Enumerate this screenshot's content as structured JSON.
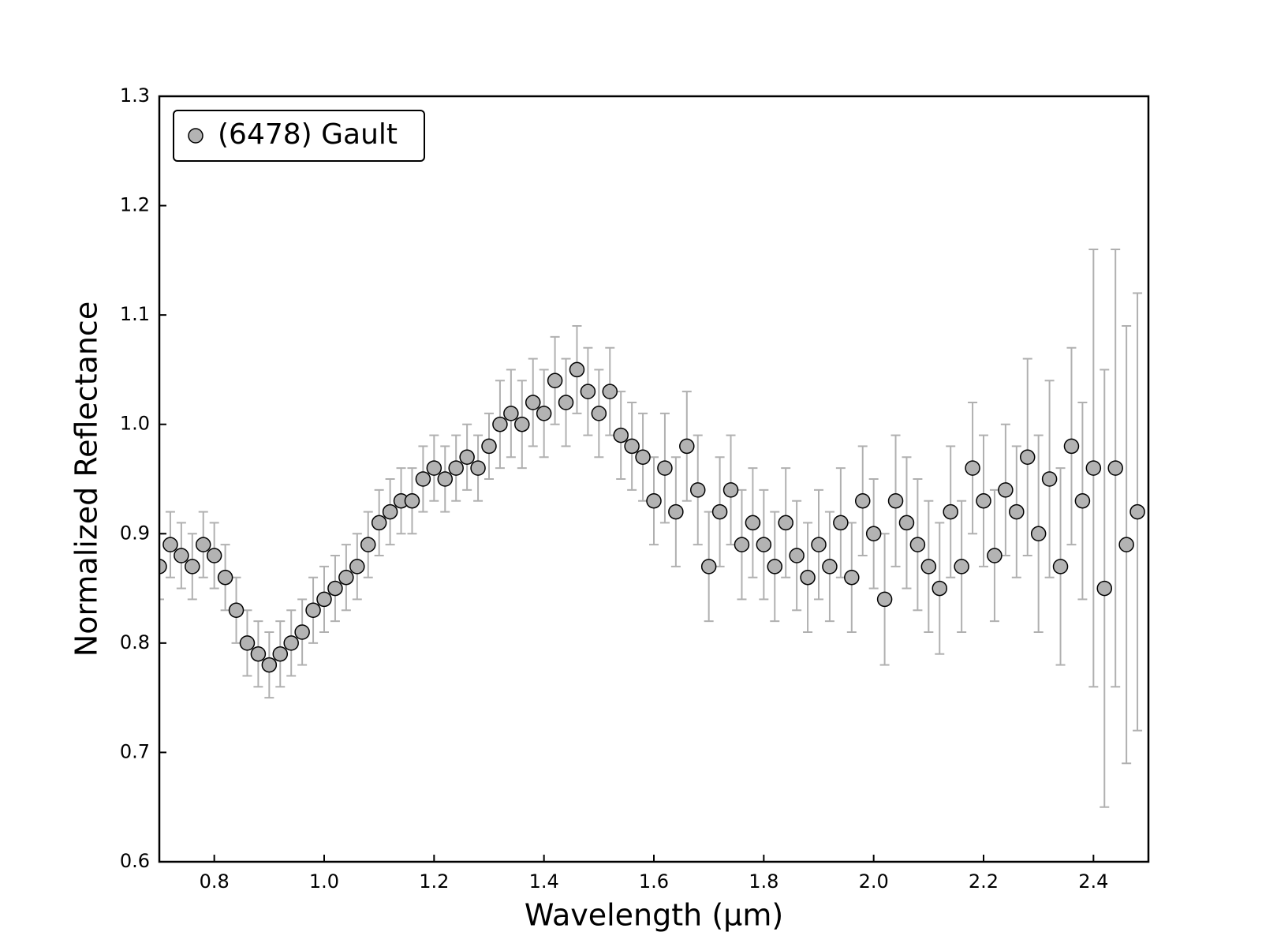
{
  "chart_data": {
    "type": "scatter",
    "xlabel": "Wavelength (μm)",
    "ylabel": "Normalized Reflectance",
    "xlim": [
      0.7,
      2.5
    ],
    "ylim": [
      0.6,
      1.3
    ],
    "xticks": [
      0.8,
      {
        "value": 1,
        "label": "1.0"
      },
      1.2,
      1.4,
      1.6,
      1.8,
      {
        "value": 2,
        "label": "2.0"
      },
      2.2,
      2.4
    ],
    "yticks": [
      0.6,
      0.7,
      0.8,
      0.9,
      {
        "value": 1,
        "label": "1.0"
      },
      1.1,
      1.2,
      1.3
    ],
    "legend": "upper left",
    "series": [
      {
        "name": "(6478) Gault",
        "color": "#b3b3b3",
        "edgecolor": "#000000",
        "ecolor": "#b0b0b0",
        "x": [
          0.7,
          0.72,
          0.74,
          0.76,
          0.78,
          0.8,
          0.82,
          0.84,
          0.86,
          0.88,
          0.9,
          0.92,
          0.94,
          0.96,
          0.98,
          1.0,
          1.02,
          1.04,
          1.06,
          1.08,
          1.1,
          1.12,
          1.14,
          1.16,
          1.18,
          1.2,
          1.22,
          1.24,
          1.26,
          1.28,
          1.3,
          1.32,
          1.34,
          1.36,
          1.38,
          1.4,
          1.42,
          1.44,
          1.46,
          1.48,
          1.5,
          1.52,
          1.54,
          1.56,
          1.58,
          1.6,
          1.62,
          1.64,
          1.66,
          1.68,
          1.7,
          1.72,
          1.74,
          1.76,
          1.78,
          1.8,
          1.82,
          1.84,
          1.86,
          1.88,
          1.9,
          1.92,
          1.94,
          1.96,
          1.98,
          2.0,
          2.02,
          2.04,
          2.06,
          2.08,
          2.1,
          2.12,
          2.14,
          2.16,
          2.18,
          2.2,
          2.22,
          2.24,
          2.26,
          2.28,
          2.3,
          2.32,
          2.34,
          2.36,
          2.38,
          2.4,
          2.42,
          2.44,
          2.46,
          2.48
        ],
        "values": [
          0.87,
          0.89,
          0.88,
          0.87,
          0.89,
          0.88,
          0.86,
          0.83,
          0.8,
          0.79,
          0.78,
          0.79,
          0.8,
          0.81,
          0.83,
          0.84,
          0.85,
          0.86,
          0.87,
          0.89,
          0.91,
          0.92,
          0.93,
          0.93,
          0.95,
          0.96,
          0.95,
          0.96,
          0.97,
          0.96,
          0.98,
          1.0,
          1.01,
          1.0,
          1.02,
          1.01,
          1.04,
          1.02,
          1.05,
          1.03,
          1.01,
          1.03,
          0.99,
          0.98,
          0.97,
          0.93,
          0.96,
          0.92,
          0.98,
          0.94,
          0.87,
          0.92,
          0.94,
          0.89,
          0.91,
          0.89,
          0.87,
          0.91,
          0.88,
          0.86,
          0.89,
          0.87,
          0.91,
          0.86,
          0.93,
          0.9,
          0.84,
          0.93,
          0.91,
          0.89,
          0.87,
          0.85,
          0.92,
          0.87,
          0.96,
          0.93,
          0.88,
          0.94,
          0.92,
          0.97,
          0.9,
          0.95,
          0.87,
          0.98,
          0.93,
          0.96,
          0.85,
          0.96,
          0.89,
          0.92
        ],
        "errors": [
          0.03,
          0.03,
          0.03,
          0.03,
          0.03,
          0.03,
          0.03,
          0.03,
          0.03,
          0.03,
          0.03,
          0.03,
          0.03,
          0.03,
          0.03,
          0.03,
          0.03,
          0.03,
          0.03,
          0.03,
          0.03,
          0.03,
          0.03,
          0.03,
          0.03,
          0.03,
          0.03,
          0.03,
          0.03,
          0.03,
          0.03,
          0.04,
          0.04,
          0.04,
          0.04,
          0.04,
          0.04,
          0.04,
          0.04,
          0.04,
          0.04,
          0.04,
          0.04,
          0.04,
          0.04,
          0.04,
          0.05,
          0.05,
          0.05,
          0.05,
          0.05,
          0.05,
          0.05,
          0.05,
          0.05,
          0.05,
          0.05,
          0.05,
          0.05,
          0.05,
          0.05,
          0.05,
          0.05,
          0.05,
          0.05,
          0.05,
          0.06,
          0.06,
          0.06,
          0.06,
          0.06,
          0.06,
          0.06,
          0.06,
          0.06,
          0.06,
          0.06,
          0.06,
          0.06,
          0.09,
          0.09,
          0.09,
          0.09,
          0.09,
          0.09,
          0.2,
          0.2,
          0.2,
          0.2,
          0.2
        ]
      }
    ]
  }
}
